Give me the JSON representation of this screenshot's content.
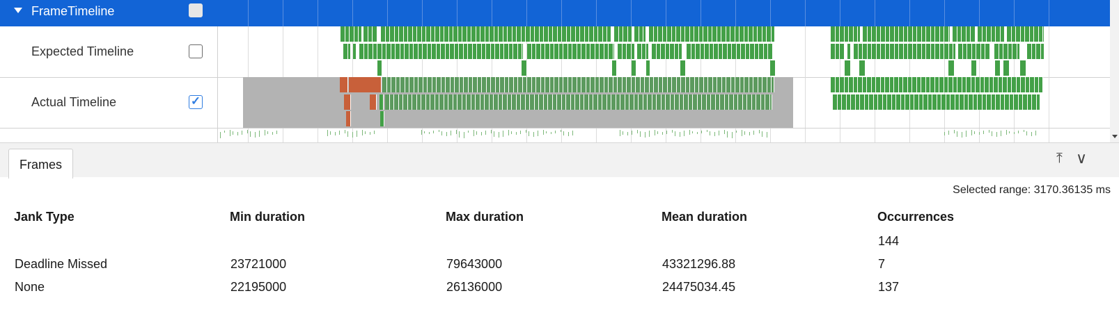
{
  "tracks": {
    "header": {
      "label": "FrameTimeline",
      "checked": false
    },
    "expected": {
      "label": "Expected Timeline",
      "checked": false
    },
    "actual": {
      "label": "Actual Timeline",
      "checked": true
    }
  },
  "colors": {
    "header": "#1264d6",
    "on_time": "#43a047",
    "jank": "#c8603a",
    "selection": "#b3b3b3"
  },
  "panel": {
    "tab_label": "Frames",
    "selected_range": "Selected range: 3170.36135 ms"
  },
  "table": {
    "columns": [
      "Jank Type",
      "Min duration",
      "Max duration",
      "Mean duration",
      "Occurrences"
    ],
    "rows": [
      [
        "",
        "",
        "",
        "",
        "144"
      ],
      [
        "Deadline Missed",
        "23721000",
        "79643000",
        "43321296.88",
        "7"
      ],
      [
        "None",
        "22195000",
        "26136000",
        "24475034.45",
        "137"
      ]
    ]
  }
}
